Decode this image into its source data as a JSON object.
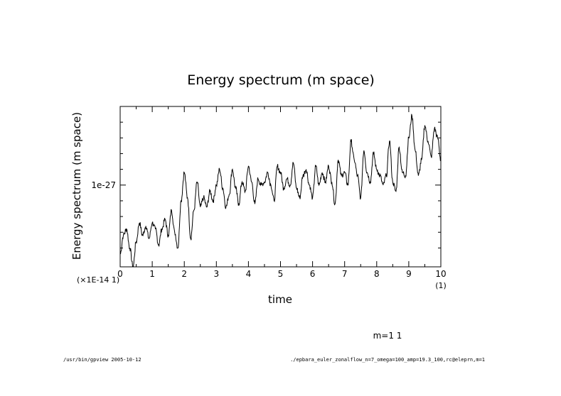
{
  "chart_data": {
    "type": "line",
    "title": "Energy spectrum (m space)",
    "xlabel": "time",
    "ylabel": "Energy spectrum (m space)",
    "x_scale_note": "(1)",
    "y_scale_note": "(×1E-14 1)",
    "xlim": [
      0,
      10
    ],
    "ylim": [
      0.74,
      1.25
    ],
    "x_ticks": [
      0,
      1,
      2,
      3,
      4,
      5,
      6,
      7,
      8,
      9,
      10
    ],
    "x_tick_labels": [
      "0",
      "1",
      "2",
      "3",
      "4",
      "5",
      "6",
      "7",
      "8",
      "9",
      "10"
    ],
    "y_labeled_tick": {
      "value": 1.0,
      "label": "1e-27"
    },
    "legend": "m=1 1",
    "series": [
      {
        "name": "m=1 1",
        "x": [
          0,
          0.1,
          0.2,
          0.3,
          0.4,
          0.5,
          0.6,
          0.7,
          0.8,
          0.9,
          1.0,
          1.1,
          1.2,
          1.3,
          1.4,
          1.5,
          1.6,
          1.7,
          1.8,
          1.9,
          2.0,
          2.1,
          2.2,
          2.3,
          2.4,
          2.5,
          2.6,
          2.7,
          2.8,
          2.9,
          3.0,
          3.1,
          3.2,
          3.3,
          3.4,
          3.5,
          3.6,
          3.7,
          3.8,
          3.9,
          4.0,
          4.1,
          4.2,
          4.3,
          4.4,
          4.5,
          4.6,
          4.7,
          4.8,
          4.9,
          5.0,
          5.1,
          5.2,
          5.3,
          5.4,
          5.5,
          5.6,
          5.7,
          5.8,
          5.9,
          6.0,
          6.1,
          6.2,
          6.3,
          6.4,
          6.5,
          6.6,
          6.7,
          6.8,
          6.9,
          7.0,
          7.1,
          7.2,
          7.3,
          7.4,
          7.5,
          7.6,
          7.7,
          7.8,
          7.9,
          8.0,
          8.1,
          8.2,
          8.3,
          8.4,
          8.5,
          8.6,
          8.7,
          8.8,
          8.9,
          9.0,
          9.1,
          9.2,
          9.3,
          9.4,
          9.5,
          9.6,
          9.7,
          9.8,
          9.9,
          10.0
        ],
        "values": [
          0.78,
          0.84,
          0.86,
          0.8,
          0.74,
          0.82,
          0.88,
          0.84,
          0.87,
          0.83,
          0.88,
          0.86,
          0.81,
          0.86,
          0.89,
          0.84,
          0.92,
          0.85,
          0.8,
          0.95,
          1.04,
          0.96,
          0.83,
          0.92,
          1.01,
          0.93,
          0.96,
          0.93,
          0.98,
          0.95,
          1.0,
          1.05,
          0.99,
          0.93,
          0.97,
          1.05,
          0.99,
          0.94,
          1.01,
          0.98,
          1.06,
          1.01,
          0.94,
          1.02,
          1.0,
          1.01,
          1.04,
          1.0,
          0.95,
          1.06,
          1.04,
          0.99,
          1.02,
          1.0,
          1.07,
          0.99,
          0.96,
          1.03,
          1.05,
          1.0,
          0.96,
          1.06,
          1.0,
          1.04,
          1.01,
          1.06,
          1.01,
          0.94,
          1.08,
          1.03,
          1.04,
          1.0,
          1.14,
          1.08,
          1.03,
          0.96,
          1.11,
          1.04,
          1.01,
          1.1,
          1.05,
          1.03,
          1.0,
          1.03,
          1.14,
          1.01,
          0.98,
          1.12,
          1.04,
          1.03,
          1.15,
          1.22,
          1.11,
          1.03,
          1.08,
          1.19,
          1.14,
          1.09,
          1.18,
          1.15,
          1.08
        ]
      }
    ]
  },
  "footer": {
    "left": "/usr/bin/gpview  2005-10-12",
    "right": "./epbara_euler_zonalflow_n=7_omega=100_amp=19.3_100,rc@eleprn,m=1"
  }
}
